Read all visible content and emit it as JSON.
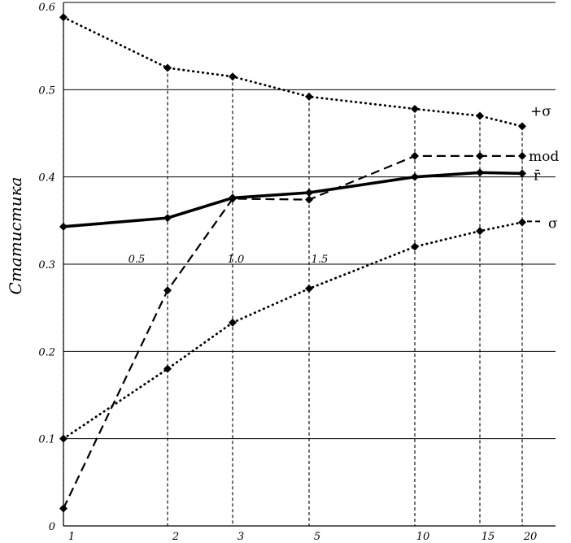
{
  "chart_data": {
    "type": "line",
    "title": "",
    "xlabel": "",
    "ylabel": "Статистика",
    "x_ticks": [
      1,
      2,
      3,
      5,
      10,
      15,
      20
    ],
    "y_ticks": [
      "0",
      "0.1",
      "0.2",
      "0.3",
      "0.4",
      "0.5",
      "0.6"
    ],
    "y_tick_values": [
      0,
      0.1,
      0.2,
      0.3,
      0.4,
      0.5,
      0.6
    ],
    "ylim": [
      0,
      0.6
    ],
    "grid": "horizontal",
    "annotations": [
      {
        "text": "0.5",
        "x": 1.6,
        "y": 0.302
      },
      {
        "text": "1.0",
        "x": 2.9,
        "y": 0.302
      },
      {
        "text": "1.5",
        "x": 5.1,
        "y": 0.302
      }
    ],
    "series": [
      {
        "name": "+σ",
        "style": "dotted",
        "x": [
          1,
          2,
          3,
          5,
          10,
          15,
          20
        ],
        "y": [
          0.583,
          0.525,
          0.515,
          0.492,
          0.478,
          0.47,
          0.458
        ]
      },
      {
        "name": "mod",
        "style": "dashed",
        "x": [
          1,
          2,
          3,
          5,
          10,
          15,
          20
        ],
        "y": [
          0.02,
          0.27,
          0.375,
          0.374,
          0.424,
          0.424,
          0.424
        ]
      },
      {
        "name": "r̄",
        "style": "solid",
        "x": [
          1,
          2,
          3,
          5,
          10,
          15,
          20
        ],
        "y": [
          0.343,
          0.353,
          0.376,
          0.382,
          0.4,
          0.405,
          0.404
        ]
      },
      {
        "name": "σ",
        "style": "dotted",
        "x": [
          1,
          2,
          3,
          5,
          10,
          15,
          20
        ],
        "y": [
          0.1,
          0.18,
          0.233,
          0.272,
          0.32,
          0.338,
          0.348
        ]
      }
    ],
    "vertical_guides": [
      {
        "x": 1,
        "style": "dashed"
      },
      {
        "x": 2,
        "style": "dashed"
      },
      {
        "x": 3,
        "style": "dashed"
      },
      {
        "x": 5,
        "style": "dashed"
      },
      {
        "x": 10,
        "style": "dashed"
      },
      {
        "x": 15,
        "style": "dashed"
      },
      {
        "x": 20,
        "style": "dashed"
      }
    ]
  }
}
